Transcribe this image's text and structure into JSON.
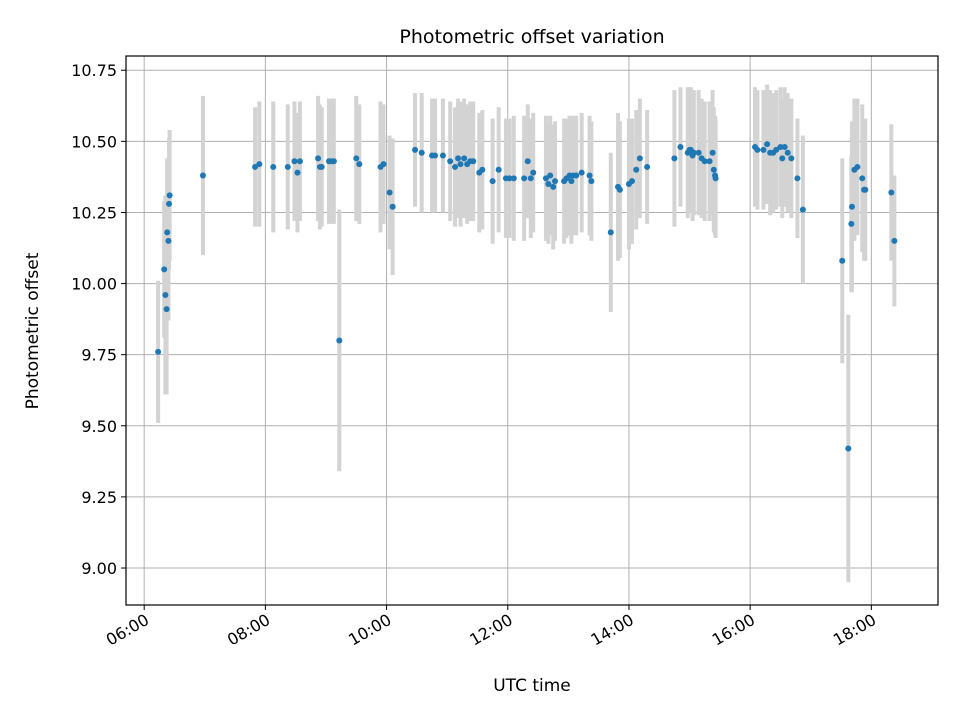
{
  "chart_data": {
    "type": "scatter",
    "title": "Photometric offset variation",
    "xlabel": "UTC time",
    "ylabel": "Photometric offset",
    "x_unit": "hours UTC",
    "xlim": [
      5.7,
      19.1
    ],
    "ylim": [
      8.87,
      10.8
    ],
    "xticks": [
      6,
      8,
      10,
      12,
      14,
      16,
      18
    ],
    "xtick_labels": [
      "06:00",
      "08:00",
      "10:00",
      "12:00",
      "14:00",
      "16:00",
      "18:00"
    ],
    "yticks": [
      9.0,
      9.25,
      9.5,
      9.75,
      10.0,
      10.25,
      10.5,
      10.75
    ],
    "ytick_labels": [
      "9.00",
      "9.25",
      "9.50",
      "9.75",
      "10.00",
      "10.25",
      "10.50",
      "10.75"
    ],
    "grid": true,
    "colors": {
      "marker": "#1f77b4",
      "errorbar": "#d3d3d3",
      "grid": "#b0b0b0"
    },
    "series": [
      {
        "x": [
          6.23,
          6.33,
          6.35,
          6.37,
          6.38,
          6.4,
          6.41,
          6.42,
          6.97,
          7.83,
          7.9,
          8.13,
          8.37,
          8.48,
          8.53,
          8.57,
          8.87,
          8.9,
          8.93,
          9.05,
          9.1,
          9.13,
          9.22,
          9.5,
          9.55,
          9.9,
          9.95,
          10.05,
          10.1,
          10.47,
          10.58,
          10.75,
          10.8,
          10.93,
          11.05,
          11.13,
          11.18,
          11.22,
          11.28,
          11.33,
          11.38,
          11.43,
          11.53,
          11.58,
          11.75,
          11.85,
          11.97,
          12.03,
          12.1,
          12.27,
          12.33,
          12.38,
          12.42,
          12.63,
          12.67,
          12.7,
          12.75,
          12.78,
          12.93,
          12.97,
          13.02,
          13.05,
          13.08,
          13.13,
          13.22,
          13.35,
          13.38,
          13.7,
          13.82,
          13.85,
          14.0,
          14.05,
          14.12,
          14.18,
          14.3,
          14.75,
          14.85,
          14.97,
          15.0,
          15.02,
          15.05,
          15.07,
          15.15,
          15.2,
          15.25,
          15.33,
          15.38,
          15.4,
          15.42,
          15.43,
          16.08,
          16.12,
          16.22,
          16.28,
          16.33,
          16.38,
          16.43,
          16.5,
          16.53,
          16.57,
          16.62,
          16.68,
          16.78,
          16.87,
          17.52,
          17.62,
          17.67,
          17.68,
          17.72,
          17.77,
          17.85,
          17.88,
          17.9,
          18.33,
          18.38
        ],
        "y": [
          9.76,
          10.05,
          9.96,
          9.91,
          10.18,
          10.15,
          10.28,
          10.31,
          10.38,
          10.41,
          10.42,
          10.41,
          10.41,
          10.43,
          10.39,
          10.43,
          10.44,
          10.41,
          10.41,
          10.43,
          10.43,
          10.43,
          9.8,
          10.44,
          10.42,
          10.41,
          10.42,
          10.32,
          10.27,
          10.47,
          10.46,
          10.45,
          10.45,
          10.45,
          10.43,
          10.41,
          10.44,
          10.42,
          10.44,
          10.42,
          10.43,
          10.43,
          10.39,
          10.4,
          10.36,
          10.4,
          10.37,
          10.37,
          10.37,
          10.37,
          10.43,
          10.37,
          10.39,
          10.37,
          10.35,
          10.38,
          10.34,
          10.36,
          10.36,
          10.37,
          10.38,
          10.36,
          10.38,
          10.38,
          10.39,
          10.38,
          10.36,
          10.18,
          10.34,
          10.33,
          10.35,
          10.36,
          10.4,
          10.44,
          10.41,
          10.44,
          10.48,
          10.46,
          10.47,
          10.47,
          10.45,
          10.46,
          10.46,
          10.44,
          10.43,
          10.43,
          10.46,
          10.4,
          10.38,
          10.37,
          10.48,
          10.47,
          10.47,
          10.49,
          10.46,
          10.46,
          10.47,
          10.48,
          10.44,
          10.48,
          10.46,
          10.44,
          10.37,
          10.26,
          10.08,
          9.42,
          10.21,
          10.27,
          10.4,
          10.41,
          10.37,
          10.33,
          10.33,
          10.32,
          10.15
        ],
        "yerr": [
          0.25,
          0.24,
          0.35,
          0.3,
          0.26,
          0.28,
          0.23,
          0.23,
          0.28,
          0.21,
          0.22,
          0.23,
          0.22,
          0.21,
          0.21,
          0.21,
          0.22,
          0.22,
          0.21,
          0.22,
          0.22,
          0.22,
          0.46,
          0.22,
          0.21,
          0.23,
          0.21,
          0.2,
          0.24,
          0.2,
          0.21,
          0.2,
          0.2,
          0.2,
          0.21,
          0.21,
          0.21,
          0.22,
          0.21,
          0.21,
          0.21,
          0.21,
          0.21,
          0.21,
          0.22,
          0.22,
          0.21,
          0.21,
          0.22,
          0.22,
          0.2,
          0.21,
          0.21,
          0.22,
          0.21,
          0.21,
          0.22,
          0.21,
          0.22,
          0.21,
          0.21,
          0.22,
          0.21,
          0.21,
          0.21,
          0.21,
          0.21,
          0.28,
          0.26,
          0.24,
          0.23,
          0.22,
          0.21,
          0.21,
          0.2,
          0.24,
          0.21,
          0.23,
          0.22,
          0.22,
          0.23,
          0.22,
          0.22,
          0.21,
          0.21,
          0.21,
          0.22,
          0.22,
          0.21,
          0.21,
          0.21,
          0.21,
          0.21,
          0.21,
          0.22,
          0.21,
          0.21,
          0.21,
          0.21,
          0.21,
          0.21,
          0.21,
          0.21,
          0.26,
          0.36,
          0.47,
          0.24,
          0.3,
          0.25,
          0.24,
          0.26,
          0.25,
          0.25,
          0.24,
          0.23
        ]
      }
    ]
  }
}
